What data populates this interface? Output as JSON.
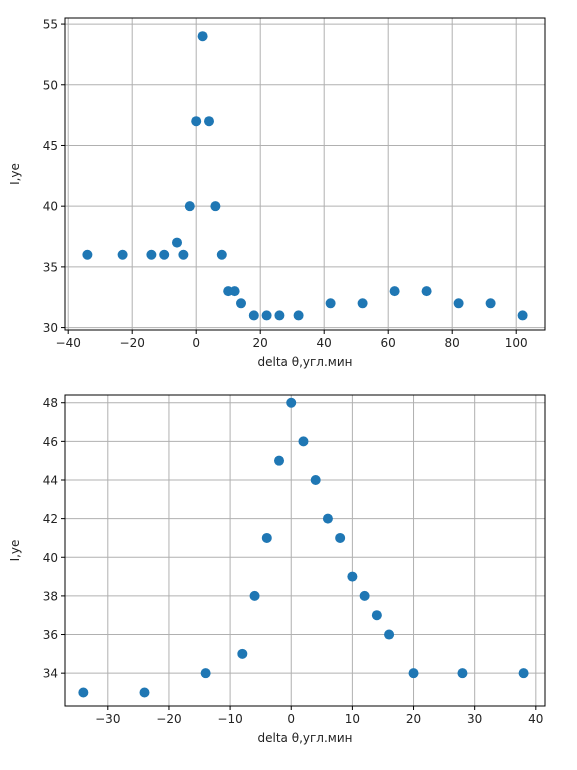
{
  "colors": {
    "marker": "#1f77b4",
    "grid": "#b0b0b0",
    "axes": "#000000",
    "background": "#ffffff"
  },
  "chart_data": [
    {
      "type": "scatter",
      "xlabel": "delta θ,угл.мин",
      "ylabel": "I,уе",
      "xlim": [
        -41,
        109
      ],
      "ylim": [
        29.8,
        55.5
      ],
      "xticks": [
        -40,
        -20,
        0,
        20,
        40,
        60,
        80,
        100
      ],
      "yticks": [
        30,
        35,
        40,
        45,
        50,
        55
      ],
      "grid": true,
      "x": [
        -34,
        -23,
        -14,
        -10,
        -6,
        -4,
        -2,
        0,
        2,
        4,
        6,
        8,
        10,
        12,
        14,
        18,
        22,
        26,
        32,
        42,
        52,
        62,
        72,
        82,
        92,
        102
      ],
      "y": [
        36,
        36,
        36,
        36,
        37,
        36,
        40,
        47,
        54,
        47,
        40,
        36,
        33,
        33,
        32,
        31,
        31,
        31,
        31,
        32,
        32,
        33,
        33,
        32,
        32,
        31
      ]
    },
    {
      "type": "scatter",
      "xlabel": "delta θ,угл.мин",
      "ylabel": "I,уе",
      "xlim": [
        -37,
        41.5
      ],
      "ylim": [
        32.3,
        48.4
      ],
      "xticks": [
        -30,
        -20,
        -10,
        0,
        10,
        20,
        30,
        40
      ],
      "yticks": [
        34,
        36,
        38,
        40,
        42,
        44,
        46,
        48
      ],
      "grid": true,
      "x": [
        -34,
        -24,
        -14,
        -8,
        -6,
        -4,
        -2,
        0,
        2,
        4,
        6,
        8,
        10,
        12,
        14,
        16,
        20,
        28,
        38
      ],
      "y": [
        33,
        33,
        34,
        35,
        38,
        41,
        45,
        48,
        46,
        44,
        42,
        41,
        39,
        38,
        37,
        36,
        34,
        34,
        34
      ]
    }
  ]
}
